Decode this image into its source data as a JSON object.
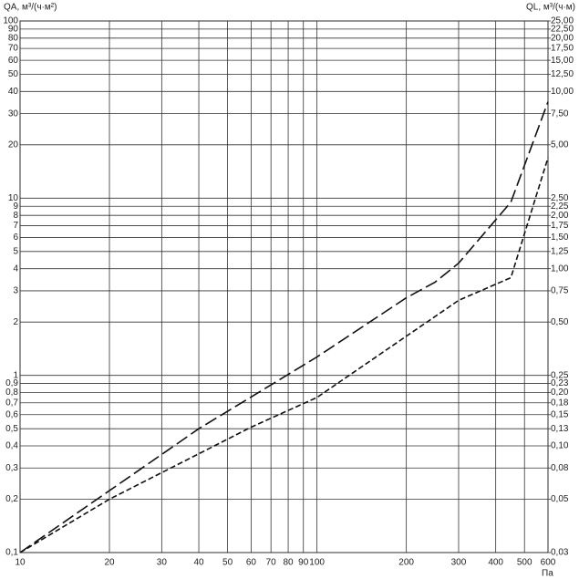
{
  "chart_data": {
    "type": "line",
    "ylabel": "QA, м³/(ч·м²)",
    "y2label": "QL, м³/(ч·м)",
    "xlabel": "Па",
    "xscale": "log",
    "yscale": "log",
    "grid": true,
    "xlim": [
      10,
      600
    ],
    "xticks": [
      10,
      20,
      30,
      40,
      50,
      60,
      70,
      80,
      90,
      100,
      200,
      300,
      400,
      500,
      600
    ],
    "ylim": [
      0.1,
      100
    ],
    "yticks": [
      {
        "value": 0.1,
        "label": "0,1"
      },
      {
        "value": 0.2,
        "label": "0,2"
      },
      {
        "value": 0.3,
        "label": "0,3"
      },
      {
        "value": 0.4,
        "label": "0,4"
      },
      {
        "value": 0.5,
        "label": "0,5"
      },
      {
        "value": 0.6,
        "label": "0,6"
      },
      {
        "value": 0.7,
        "label": "0,7"
      },
      {
        "value": 0.8,
        "label": "0,8"
      },
      {
        "value": 0.9,
        "label": "0,9"
      },
      1,
      2,
      3,
      4,
      5,
      6,
      7,
      8,
      9,
      10,
      20,
      30,
      40,
      50,
      60,
      70,
      80,
      90,
      100
    ],
    "y2lim": [
      0.025,
      25
    ],
    "y2ticks": [
      {
        "value": 0.025,
        "label": "0,03"
      },
      {
        "value": 0.05,
        "label": "0,05"
      },
      {
        "value": 0.075,
        "label": "0,08"
      },
      {
        "value": 0.1,
        "label": "0,10"
      },
      {
        "value": 0.125,
        "label": "0,13"
      },
      {
        "value": 0.15,
        "label": "0,15"
      },
      {
        "value": 0.175,
        "label": "0,18"
      },
      {
        "value": 0.2,
        "label": "0,20"
      },
      {
        "value": 0.225,
        "label": "0,23"
      },
      {
        "value": 0.25,
        "label": "0,25"
      },
      {
        "value": 0.5,
        "label": "0,50"
      },
      {
        "value": 0.75,
        "label": "0,75"
      },
      {
        "value": 1,
        "label": "1,00"
      },
      {
        "value": 1.25,
        "label": "1,25"
      },
      {
        "value": 1.5,
        "label": "1,50"
      },
      {
        "value": 1.75,
        "label": "1,75"
      },
      {
        "value": 2,
        "label": "2,00"
      },
      {
        "value": 2.25,
        "label": "2,25"
      },
      {
        "value": 2.5,
        "label": "2,50"
      },
      {
        "value": 5,
        "label": "5,00"
      },
      {
        "value": 7.5,
        "label": "7,50"
      },
      {
        "value": 10,
        "label": "10,00"
      },
      {
        "value": 12.5,
        "label": "12,50"
      },
      {
        "value": 15,
        "label": "15,00"
      },
      {
        "value": 17.5,
        "label": "17,50"
      },
      {
        "value": 20,
        "label": "20,00"
      },
      {
        "value": 22.5,
        "label": "22,50"
      },
      {
        "value": 25,
        "label": "25,00"
      }
    ],
    "series": [
      {
        "color": "#111111",
        "dash": "long-dash",
        "x": [
          10,
          40,
          100,
          200,
          250,
          300,
          450,
          600
        ],
        "values": [
          0.1,
          0.5,
          1.27,
          2.74,
          3.36,
          4.3,
          9.5,
          35
        ]
      },
      {
        "color": "#111111",
        "dash": "short-dash",
        "x": [
          10,
          20,
          60,
          100,
          300,
          450,
          600
        ],
        "values": [
          0.1,
          0.2,
          0.51,
          0.75,
          2.65,
          3.56,
          16.9
        ]
      }
    ]
  }
}
